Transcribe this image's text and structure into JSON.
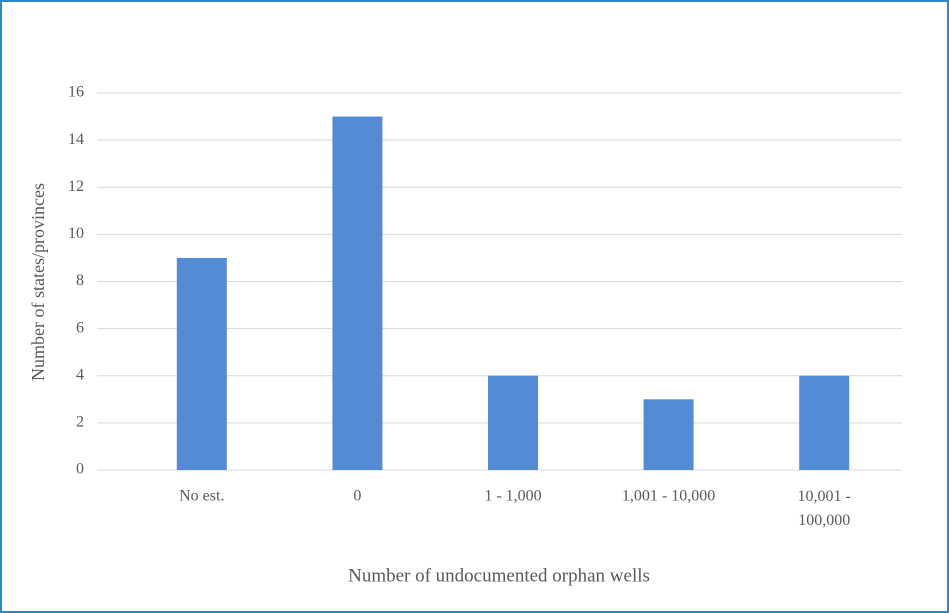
{
  "chart_data": {
    "type": "bar",
    "categories": [
      "No est.",
      "0",
      "1 - 1,000",
      "1,001 - 10,000",
      "10,001 - 100,000"
    ],
    "values": [
      9,
      15,
      4,
      3,
      4
    ],
    "color": "#558ad4",
    "xlabel": "Number of undocumented orphan wells",
    "ylabel": "Number of states/provinces",
    "ylim": [
      0,
      16
    ],
    "yticks": [
      0,
      2,
      4,
      6,
      8,
      10,
      12,
      14,
      16
    ],
    "grid": true
  }
}
